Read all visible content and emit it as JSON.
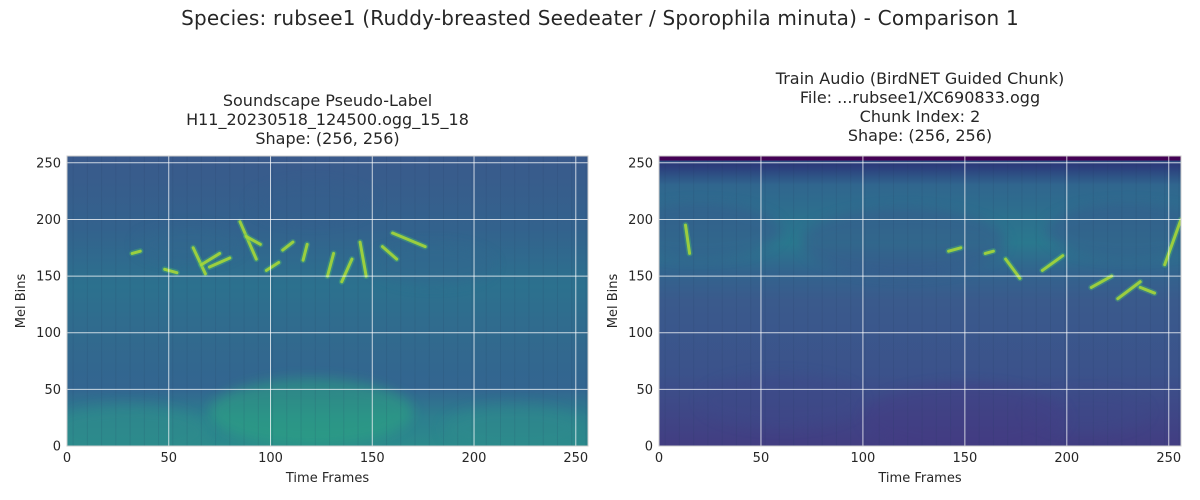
{
  "figure": {
    "suptitle": "Species: rubsee1 (Ruddy-breasted Seedeater / Sporophila minuta) - Comparison 1"
  },
  "chart_data": [
    {
      "type": "heatmap",
      "colormap": "viridis",
      "title_lines": [
        "Soundscape Pseudo-Label",
        "H11_20230518_124500.ogg_15_18",
        "Shape: (256, 256)"
      ],
      "xlabel": "Time Frames",
      "ylabel": "Mel Bins",
      "xlim": [
        0,
        256
      ],
      "ylim": [
        0,
        256
      ],
      "xticks": [
        0,
        50,
        100,
        150,
        200,
        250
      ],
      "yticks": [
        0,
        50,
        100,
        150,
        200,
        250
      ],
      "grid": true,
      "shape": [
        256,
        256
      ]
    },
    {
      "type": "heatmap",
      "colormap": "viridis",
      "title_lines": [
        "Train Audio (BirdNET Guided Chunk)",
        "File: ...rubsee1/XC690833.ogg",
        "Chunk Index: 2",
        "Shape: (256, 256)"
      ],
      "xlabel": "Time Frames",
      "ylabel": "Mel Bins",
      "xlim": [
        0,
        256
      ],
      "ylim": [
        0,
        256
      ],
      "xticks": [
        0,
        50,
        100,
        150,
        200,
        250
      ],
      "yticks": [
        0,
        50,
        100,
        150,
        200,
        250
      ],
      "grid": true,
      "shape": [
        256,
        256
      ]
    }
  ]
}
